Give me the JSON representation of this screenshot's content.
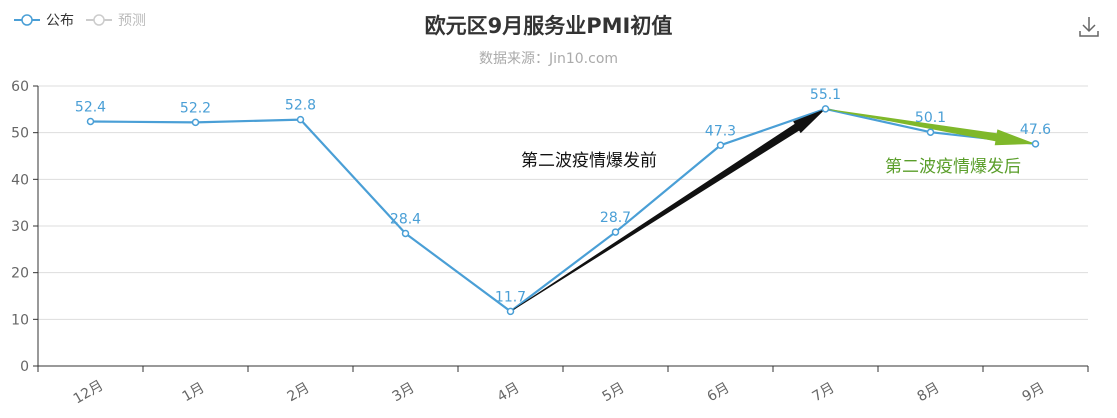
{
  "legend": {
    "published_label": "公布",
    "forecast_label": "预测"
  },
  "chart_data": {
    "type": "line",
    "title": "欧元区9月服务业PMI初值",
    "subtitle": "数据来源：Jin10.com",
    "categories": [
      "12月",
      "1月",
      "2月",
      "3月",
      "4月",
      "5月",
      "6月",
      "7月",
      "8月",
      "9月"
    ],
    "series": [
      {
        "name": "公布",
        "values": [
          52.4,
          52.2,
          52.8,
          28.4,
          11.7,
          28.7,
          47.3,
          55.1,
          50.1,
          47.6
        ],
        "color": "#4a9fd6"
      }
    ],
    "ylim": [
      0,
      60
    ],
    "yticks": [
      0,
      10,
      20,
      30,
      40,
      50,
      60
    ],
    "grid": true,
    "legend_position": "top-left",
    "annotations": [
      {
        "text": "第二波疫情爆发前",
        "color": "#111111",
        "arrow_from": [
          "4月",
          11.7
        ],
        "arrow_to": [
          "7月",
          55.1
        ]
      },
      {
        "text": "第二波疫情爆发后",
        "color": "#5a9e2a",
        "arrow_from": [
          "7月",
          55.1
        ],
        "arrow_to": [
          "9月",
          47.6
        ]
      }
    ]
  },
  "colors": {
    "series": "#4a9fd6",
    "grid": "#dddddd",
    "axis": "#333333",
    "arrow_black": "#111111",
    "arrow_green": "#7fb82a"
  },
  "icons": {
    "download": "download-icon"
  }
}
